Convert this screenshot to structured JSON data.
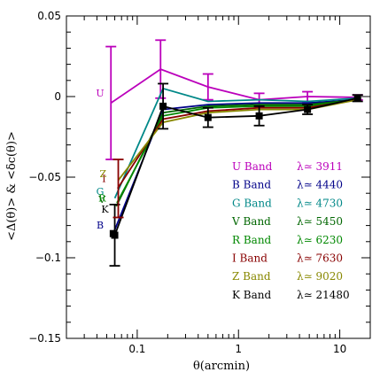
{
  "chart_data": {
    "type": "line",
    "xlabel": "θ(arcmin)",
    "ylabel_lines": [
      "<Δ⁁(θ)>   &   <δ_c(θ)>"
    ],
    "ylabel": "<Δ(θ)>  &  <δc(θ)>",
    "x_scale": "log",
    "xlim": [
      0.02,
      20
    ],
    "ylim": [
      -0.15,
      0.05
    ],
    "x_ticks": [
      0.1,
      1,
      10
    ],
    "x_tick_labels": [
      "0.1",
      "1",
      "10"
    ],
    "y_ticks": [
      -0.15,
      -0.1,
      -0.05,
      0,
      0.05
    ],
    "y_tick_labels": [
      "−0.15",
      "−0.1",
      "−0.05",
      "0",
      "0.05"
    ],
    "grid": false,
    "legend_position": "lower-right",
    "series": [
      {
        "name": "U Band",
        "lambda": "λ≃ 3911",
        "color": "#bb00bb",
        "label": "U",
        "label_x": 0.043,
        "label_y": 0.0,
        "x": [
          0.055,
          0.17,
          0.5,
          1.6,
          4.8,
          15
        ],
        "y": [
          -0.004,
          0.017,
          0.006,
          -0.002,
          0.0,
          -0.0005
        ],
        "err": [
          0.035,
          0.018,
          0.008,
          0.004,
          0.003,
          0.0015
        ]
      },
      {
        "name": "B Band",
        "lambda": "λ≃ 4440",
        "color": "#000088",
        "label": "B",
        "label_x": 0.043,
        "label_y": -0.082,
        "x": [
          0.058,
          0.18,
          0.5,
          1.6,
          4.8,
          15
        ],
        "y": [
          -0.085,
          -0.008,
          -0.005,
          -0.004,
          -0.004,
          -0.002
        ]
      },
      {
        "name": "G Band",
        "lambda": "λ≃ 4730",
        "color": "#008888",
        "label": "G",
        "label_x": 0.043,
        "label_y": -0.061,
        "x": [
          0.06,
          0.18,
          0.5,
          1.6,
          4.8,
          15
        ],
        "y": [
          -0.063,
          0.005,
          -0.003,
          -0.002,
          -0.003,
          -0.001
        ]
      },
      {
        "name": "V Band",
        "lambda": "λ≃ 5450",
        "color": "#006600",
        "label": "V",
        "label_x": 0.045,
        "label_y": -0.066,
        "x": [
          0.062,
          0.18,
          0.5,
          1.6,
          4.8,
          15
        ],
        "y": [
          -0.068,
          -0.01,
          -0.006,
          -0.005,
          -0.005,
          -0.002
        ]
      },
      {
        "name": "R Band",
        "lambda": "λ≃ 6230",
        "color": "#008800",
        "label": "R",
        "label_x": 0.045,
        "label_y": -0.065,
        "x": [
          0.063,
          0.18,
          0.5,
          1.6,
          4.8,
          15
        ],
        "y": [
          -0.066,
          -0.012,
          -0.007,
          -0.006,
          -0.006,
          -0.002
        ]
      },
      {
        "name": "I Band",
        "lambda": "λ≃ 7630",
        "color": "#880000",
        "label": "I",
        "label_x": 0.047,
        "label_y": -0.053,
        "x": [
          0.064,
          0.18,
          0.5,
          1.6,
          4.8,
          15
        ],
        "y": [
          -0.057,
          -0.014,
          -0.009,
          -0.007,
          -0.007,
          -0.002
        ]
      },
      {
        "name": "Z Band",
        "lambda": "λ≃ 9020",
        "color": "#888800",
        "label": "Z",
        "label_x": 0.046,
        "label_y": -0.05,
        "x": [
          0.065,
          0.18,
          0.5,
          1.6,
          4.8,
          15
        ],
        "y": [
          -0.052,
          -0.016,
          -0.01,
          -0.008,
          -0.008,
          -0.002
        ]
      },
      {
        "name": "K Band",
        "lambda": "λ≃ 21480",
        "color": "#000000",
        "label": "K",
        "label_x": 0.048,
        "label_y": -0.072,
        "x": [
          0.06,
          0.18,
          0.5,
          1.6,
          4.8,
          15
        ],
        "y": [
          -0.086,
          -0.006,
          -0.013,
          -0.012,
          -0.008,
          -0.001
        ],
        "err": [
          0.019,
          0.014,
          0.006,
          0.006,
          0.003,
          0.002
        ]
      }
    ],
    "extra_errorbars": [
      {
        "series": "I Band",
        "x": 0.065,
        "y": -0.057,
        "err": 0.018
      }
    ]
  }
}
